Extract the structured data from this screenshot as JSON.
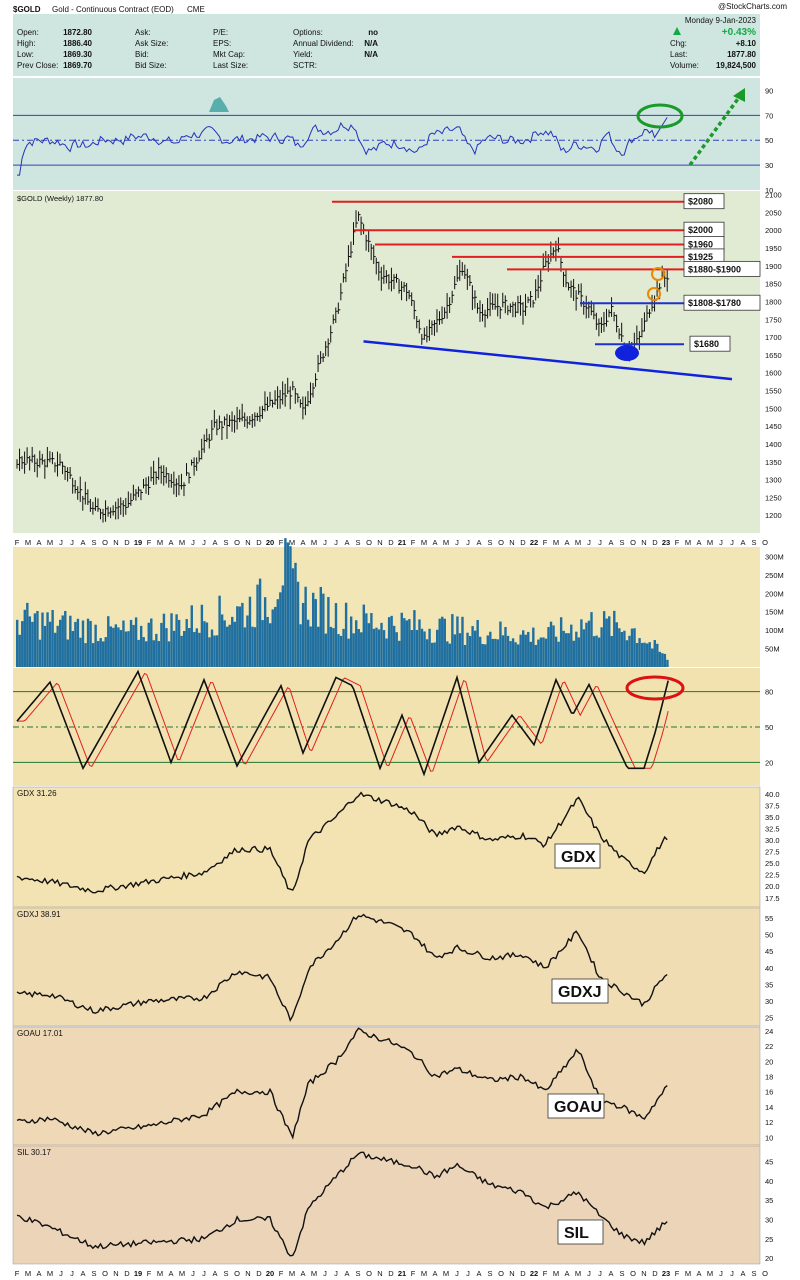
{
  "header": {
    "symbol": "$GOLD",
    "description": "Gold - Continuous Contract (EOD)",
    "exchange": "CME",
    "watermark": "@StockCharts.com",
    "date": "Monday  9-Jan-2023",
    "change_pct": "+0.43%",
    "col1": [
      [
        "Open:",
        "1872.80"
      ],
      [
        "High:",
        "1886.40"
      ],
      [
        "Low:",
        "1869.30"
      ],
      [
        "Prev Close:",
        "1869.70"
      ]
    ],
    "col2": [
      [
        "Ask:",
        ""
      ],
      [
        "Ask Size:",
        ""
      ],
      [
        "Bid:",
        ""
      ],
      [
        "Bid Size:",
        ""
      ]
    ],
    "col3": [
      [
        "P/E:",
        ""
      ],
      [
        "EPS:",
        ""
      ],
      [
        "Mkt Cap:",
        ""
      ],
      [
        "Last Size:",
        ""
      ]
    ],
    "col4": [
      [
        "Options:",
        "no"
      ],
      [
        "Annual Dividend:",
        "N/A"
      ],
      [
        "Yield:",
        "N/A"
      ],
      [
        "SCTR:",
        ""
      ]
    ],
    "col5": [
      [
        "Chg:",
        "+8.10"
      ],
      [
        "Last:",
        "1877.80"
      ],
      [
        "Volume:",
        "19,824,500"
      ]
    ]
  },
  "months": [
    "F",
    "M",
    "A",
    "M",
    "J",
    "J",
    "A",
    "S",
    "O",
    "N",
    "D",
    "19",
    "F",
    "M",
    "A",
    "M",
    "J",
    "J",
    "A",
    "S",
    "O",
    "N",
    "D",
    "20",
    "F",
    "M",
    "A",
    "M",
    "J",
    "J",
    "A",
    "S",
    "O",
    "N",
    "D",
    "21",
    "F",
    "M",
    "A",
    "M",
    "J",
    "J",
    "A",
    "S",
    "O",
    "N",
    "D",
    "22",
    "F",
    "M",
    "A",
    "M",
    "J",
    "J",
    "A",
    "S",
    "O",
    "N",
    "D",
    "23",
    "F",
    "M",
    "A",
    "M",
    "J",
    "J",
    "A",
    "S",
    "O"
  ],
  "chart_data": [
    {
      "type": "line",
      "name": "rsi",
      "ylim": [
        10,
        100
      ],
      "ticks": [
        90,
        70,
        50,
        30,
        10
      ],
      "levels": [
        70,
        50,
        30
      ]
    },
    {
      "type": "bar",
      "name": "price",
      "title": "$GOLD (Weekly) 1877.80",
      "ylim": [
        1150,
        2110
      ],
      "ticks": [
        2100,
        2050,
        2000,
        1950,
        1900,
        1850,
        1800,
        1750,
        1700,
        1650,
        1600,
        1550,
        1500,
        1450,
        1400,
        1350,
        1300,
        1250,
        1200
      ],
      "key_points": [
        {
          "t": 0,
          "v": 1355
        },
        {
          "t": 4,
          "v": 1345
        },
        {
          "t": 7,
          "v": 1210
        },
        {
          "t": 10,
          "v": 1230
        },
        {
          "t": 13,
          "v": 1325
        },
        {
          "t": 15,
          "v": 1285
        },
        {
          "t": 18,
          "v": 1450
        },
        {
          "t": 21,
          "v": 1470
        },
        {
          "t": 25,
          "v": 1550
        },
        {
          "t": 26,
          "v": 1490
        },
        {
          "t": 29,
          "v": 1760
        },
        {
          "t": 31,
          "v": 2040
        },
        {
          "t": 33,
          "v": 1880
        },
        {
          "t": 35.5,
          "v": 1830
        },
        {
          "t": 37,
          "v": 1690
        },
        {
          "t": 39,
          "v": 1780
        },
        {
          "t": 40.5,
          "v": 1900
        },
        {
          "t": 42,
          "v": 1770
        },
        {
          "t": 44,
          "v": 1790
        },
        {
          "t": 46,
          "v": 1780
        },
        {
          "t": 47,
          "v": 1810
        },
        {
          "t": 48,
          "v": 1900
        },
        {
          "t": 49,
          "v": 1960
        },
        {
          "t": 50,
          "v": 1850
        },
        {
          "t": 52,
          "v": 1780
        },
        {
          "t": 53,
          "v": 1720
        },
        {
          "t": 54,
          "v": 1780
        },
        {
          "t": 55.5,
          "v": 1660
        },
        {
          "t": 56.5,
          "v": 1690
        },
        {
          "t": 57.5,
          "v": 1780
        },
        {
          "t": 58.5,
          "v": 1855
        },
        {
          "t": 59.3,
          "v": 1878
        }
      ],
      "levels": [
        {
          "label": "$2080",
          "value": 2080,
          "color": "#e02020"
        },
        {
          "label": "$2000",
          "value": 2000,
          "color": "#e02020"
        },
        {
          "label": "$1960",
          "value": 1960,
          "color": "#e02020"
        },
        {
          "label": "$1925",
          "value": 1925,
          "color": "#e02020"
        },
        {
          "label": "$1880-$1900",
          "value": 1890,
          "color": "#e02020"
        },
        {
          "label": "$1808-$1780",
          "value": 1795,
          "color": "#2030d0"
        },
        {
          "label": "$1680",
          "value": 1680,
          "color": "#2030d0"
        }
      ],
      "trendline": [
        {
          "t": 31.5,
          "v": 1688
        },
        {
          "t": 65,
          "v": 1582
        }
      ]
    },
    {
      "type": "bar",
      "name": "volume",
      "ticks": [
        "300M",
        "250M",
        "200M",
        "150M",
        "100M",
        "50M"
      ],
      "ylim": [
        0,
        320
      ],
      "profile": [
        [
          0,
          140
        ],
        [
          10,
          100
        ],
        [
          20,
          160
        ],
        [
          23,
          200
        ],
        [
          24,
          300
        ],
        [
          26,
          190
        ],
        [
          30,
          140
        ],
        [
          40,
          110
        ],
        [
          48,
          90
        ],
        [
          52,
          130
        ],
        [
          56,
          110
        ],
        [
          59.3,
          20
        ]
      ]
    },
    {
      "type": "line",
      "name": "stochastic",
      "ylim": [
        0,
        100
      ],
      "ticks": [
        80,
        50,
        20
      ],
      "levels": [
        80,
        50,
        20
      ],
      "fast_color": "#111111",
      "slow_color": "#e02020"
    },
    {
      "type": "line",
      "name": "gdx",
      "title": "GDX 31.26",
      "callout": "GDX",
      "ylim": [
        15.5,
        41.5
      ],
      "ticks": [
        40.0,
        37.5,
        35.0,
        32.5,
        30.0,
        27.5,
        25.0,
        22.5,
        20.0,
        17.5
      ],
      "key_points": [
        {
          "t": 0,
          "v": 22
        },
        {
          "t": 3,
          "v": 21
        },
        {
          "t": 7,
          "v": 19
        },
        {
          "t": 12,
          "v": 21
        },
        {
          "t": 17,
          "v": 23
        },
        {
          "t": 20,
          "v": 28
        },
        {
          "t": 23,
          "v": 28
        },
        {
          "t": 24,
          "v": 23
        },
        {
          "t": 25,
          "v": 18
        },
        {
          "t": 26.5,
          "v": 30
        },
        {
          "t": 29,
          "v": 35
        },
        {
          "t": 31,
          "v": 40
        },
        {
          "t": 34,
          "v": 38
        },
        {
          "t": 36,
          "v": 36
        },
        {
          "t": 38,
          "v": 31
        },
        {
          "t": 40,
          "v": 33
        },
        {
          "t": 43,
          "v": 30
        },
        {
          "t": 46,
          "v": 31
        },
        {
          "t": 48,
          "v": 29
        },
        {
          "t": 51,
          "v": 39
        },
        {
          "t": 53,
          "v": 31
        },
        {
          "t": 55,
          "v": 26
        },
        {
          "t": 57,
          "v": 23
        },
        {
          "t": 58.5,
          "v": 29
        },
        {
          "t": 59.3,
          "v": 31.26
        }
      ]
    },
    {
      "type": "line",
      "name": "gdxj",
      "title": "GDXJ 38.91",
      "callout": "GDXJ",
      "ylim": [
        22.5,
        58
      ],
      "ticks": [
        55,
        50,
        45,
        40,
        35,
        30,
        25
      ],
      "key_points": [
        {
          "t": 0,
          "v": 32
        },
        {
          "t": 3,
          "v": 32
        },
        {
          "t": 7,
          "v": 27
        },
        {
          "t": 12,
          "v": 30
        },
        {
          "t": 17,
          "v": 31
        },
        {
          "t": 20,
          "v": 39
        },
        {
          "t": 23,
          "v": 37
        },
        {
          "t": 24,
          "v": 30
        },
        {
          "t": 25,
          "v": 24
        },
        {
          "t": 26.5,
          "v": 40
        },
        {
          "t": 29,
          "v": 48
        },
        {
          "t": 31,
          "v": 56
        },
        {
          "t": 34,
          "v": 53
        },
        {
          "t": 36,
          "v": 50
        },
        {
          "t": 38,
          "v": 43
        },
        {
          "t": 40,
          "v": 46
        },
        {
          "t": 43,
          "v": 43
        },
        {
          "t": 46,
          "v": 44
        },
        {
          "t": 48,
          "v": 40
        },
        {
          "t": 51,
          "v": 51
        },
        {
          "t": 53,
          "v": 37
        },
        {
          "t": 55,
          "v": 33
        },
        {
          "t": 57,
          "v": 29
        },
        {
          "t": 58.5,
          "v": 36
        },
        {
          "t": 59.3,
          "v": 38.91
        }
      ]
    },
    {
      "type": "line",
      "name": "goau",
      "title": "GOAU 17.01",
      "callout": "GOAU",
      "ylim": [
        9,
        24.5
      ],
      "ticks": [
        24,
        22,
        20,
        18,
        16,
        14,
        12,
        10
      ],
      "key_points": [
        {
          "t": 0,
          "v": 12
        },
        {
          "t": 3,
          "v": 12.5
        },
        {
          "t": 7,
          "v": 10.5
        },
        {
          "t": 12,
          "v": 11.5
        },
        {
          "t": 17,
          "v": 13
        },
        {
          "t": 20,
          "v": 16
        },
        {
          "t": 23,
          "v": 16
        },
        {
          "t": 24,
          "v": 13
        },
        {
          "t": 25,
          "v": 10
        },
        {
          "t": 26.5,
          "v": 17
        },
        {
          "t": 29,
          "v": 20
        },
        {
          "t": 31,
          "v": 24
        },
        {
          "t": 34,
          "v": 22.5
        },
        {
          "t": 36,
          "v": 21
        },
        {
          "t": 38,
          "v": 18
        },
        {
          "t": 40,
          "v": 19
        },
        {
          "t": 43,
          "v": 17.5
        },
        {
          "t": 46,
          "v": 18
        },
        {
          "t": 48,
          "v": 16
        },
        {
          "t": 51,
          "v": 21.5
        },
        {
          "t": 53,
          "v": 15
        },
        {
          "t": 55,
          "v": 14
        },
        {
          "t": 57,
          "v": 12.5
        },
        {
          "t": 58.5,
          "v": 15.5
        },
        {
          "t": 59.3,
          "v": 17.01
        }
      ]
    },
    {
      "type": "line",
      "name": "sil",
      "title": "SIL 30.17",
      "callout": "SIL",
      "ylim": [
        18.5,
        49
      ],
      "ticks": [
        45,
        40,
        35,
        30,
        25,
        20
      ],
      "key_points": [
        {
          "t": 0,
          "v": 31
        },
        {
          "t": 3,
          "v": 28
        },
        {
          "t": 7,
          "v": 23
        },
        {
          "t": 12,
          "v": 24
        },
        {
          "t": 17,
          "v": 25
        },
        {
          "t": 20,
          "v": 30
        },
        {
          "t": 23,
          "v": 30
        },
        {
          "t": 24,
          "v": 25
        },
        {
          "t": 25,
          "v": 20
        },
        {
          "t": 26.5,
          "v": 33
        },
        {
          "t": 29,
          "v": 41
        },
        {
          "t": 31,
          "v": 47
        },
        {
          "t": 34,
          "v": 45
        },
        {
          "t": 36,
          "v": 44
        },
        {
          "t": 38,
          "v": 41
        },
        {
          "t": 40,
          "v": 44
        },
        {
          "t": 43,
          "v": 39
        },
        {
          "t": 46,
          "v": 37
        },
        {
          "t": 48,
          "v": 33
        },
        {
          "t": 51,
          "v": 37
        },
        {
          "t": 53,
          "v": 31
        },
        {
          "t": 55,
          "v": 26
        },
        {
          "t": 57,
          "v": 24
        },
        {
          "t": 58.5,
          "v": 28
        },
        {
          "t": 59.3,
          "v": 30.17
        }
      ]
    }
  ],
  "colors": {
    "header_bg": "#cfe5df",
    "price_bg": "#e1ead2",
    "volume_bg": "#f2e6b6",
    "stoch_bg": "#f2e2b0",
    "lower_bg": "#f0d9b6",
    "volume_bar": "#1f6fa0",
    "rsi_line": "#2233bb",
    "rsi_fill": "#3aa0a0",
    "gain": "#11aa44",
    "green_annot": "#1a9a2a",
    "orange_annot": "#ee8800",
    "red_annot": "#dd1111",
    "blue_annot": "#1122dd"
  }
}
